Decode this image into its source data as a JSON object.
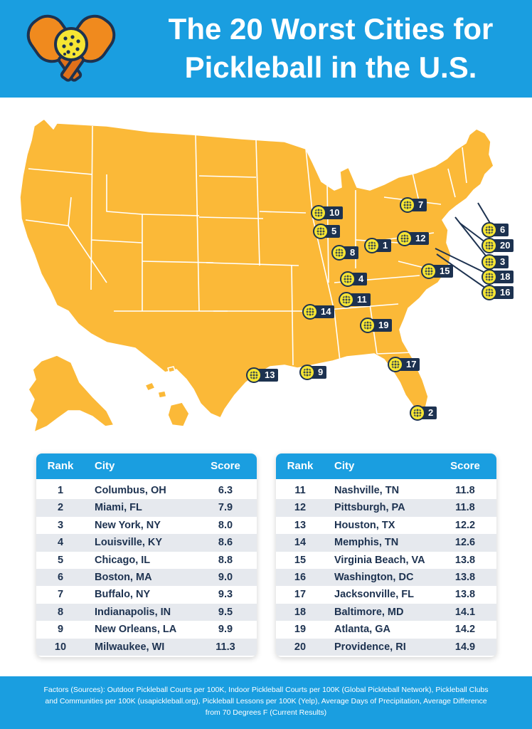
{
  "header": {
    "title_line1": "The 20 Worst Cities for",
    "title_line2": "Pickleball in the U.S."
  },
  "colors": {
    "header_bg": "#1a9ee0",
    "map_fill": "#fbb938",
    "pin_ball": "#f6e533",
    "pin_label": "#1d3250",
    "row_alt": "#e6e9ee"
  },
  "map": {
    "pins": [
      {
        "label": "1"
      },
      {
        "label": "2"
      },
      {
        "label": "3"
      },
      {
        "label": "4"
      },
      {
        "label": "5"
      },
      {
        "label": "6"
      },
      {
        "label": "7"
      },
      {
        "label": "8"
      },
      {
        "label": "9"
      },
      {
        "label": "10"
      },
      {
        "label": "11"
      },
      {
        "label": "12"
      },
      {
        "label": "13"
      },
      {
        "label": "14"
      },
      {
        "label": "15"
      },
      {
        "label": "16"
      },
      {
        "label": "17"
      },
      {
        "label": "18"
      },
      {
        "label": "19"
      },
      {
        "label": "20"
      }
    ]
  },
  "tables": {
    "headers": {
      "rank": "Rank",
      "city": "City",
      "score": "Score"
    },
    "left": [
      {
        "rank": "1",
        "city": "Columbus, OH",
        "score": "6.3"
      },
      {
        "rank": "2",
        "city": "Miami, FL",
        "score": "7.9"
      },
      {
        "rank": "3",
        "city": "New York, NY",
        "score": "8.0"
      },
      {
        "rank": "4",
        "city": "Louisville, KY",
        "score": "8.6"
      },
      {
        "rank": "5",
        "city": "Chicago, IL",
        "score": "8.8"
      },
      {
        "rank": "6",
        "city": "Boston, MA",
        "score": "9.0"
      },
      {
        "rank": "7",
        "city": "Buffalo, NY",
        "score": "9.3"
      },
      {
        "rank": "8",
        "city": "Indianapolis, IN",
        "score": "9.5"
      },
      {
        "rank": "9",
        "city": "New Orleans, LA",
        "score": "9.9"
      },
      {
        "rank": "10",
        "city": "Milwaukee, WI",
        "score": "11.3"
      }
    ],
    "right": [
      {
        "rank": "11",
        "city": "Nashville, TN",
        "score": "11.8"
      },
      {
        "rank": "12",
        "city": "Pittsburgh, PA",
        "score": "11.8"
      },
      {
        "rank": "13",
        "city": "Houston, TX",
        "score": "12.2"
      },
      {
        "rank": "14",
        "city": "Memphis, TN",
        "score": "12.6"
      },
      {
        "rank": "15",
        "city": "Virginia Beach, VA",
        "score": "13.8"
      },
      {
        "rank": "16",
        "city": "Washington, DC",
        "score": "13.8"
      },
      {
        "rank": "17",
        "city": "Jacksonville, FL",
        "score": "13.8"
      },
      {
        "rank": "18",
        "city": "Baltimore, MD",
        "score": "14.1"
      },
      {
        "rank": "19",
        "city": "Atlanta, GA",
        "score": "14.2"
      },
      {
        "rank": "20",
        "city": "Providence, RI",
        "score": "14.9"
      }
    ]
  },
  "footer": {
    "text": "Factors (Sources): Outdoor Pickleball Courts per 100K, Indoor Pickleball Courts per 100K (Global Pickleball Network), Pickleball Clubs and Communities per 100K (usapickleball.org), Pickleball Lessons per 100K (Yelp), Average Days of Precipitation, Average Difference from 70 Degrees F (Current Results)"
  }
}
